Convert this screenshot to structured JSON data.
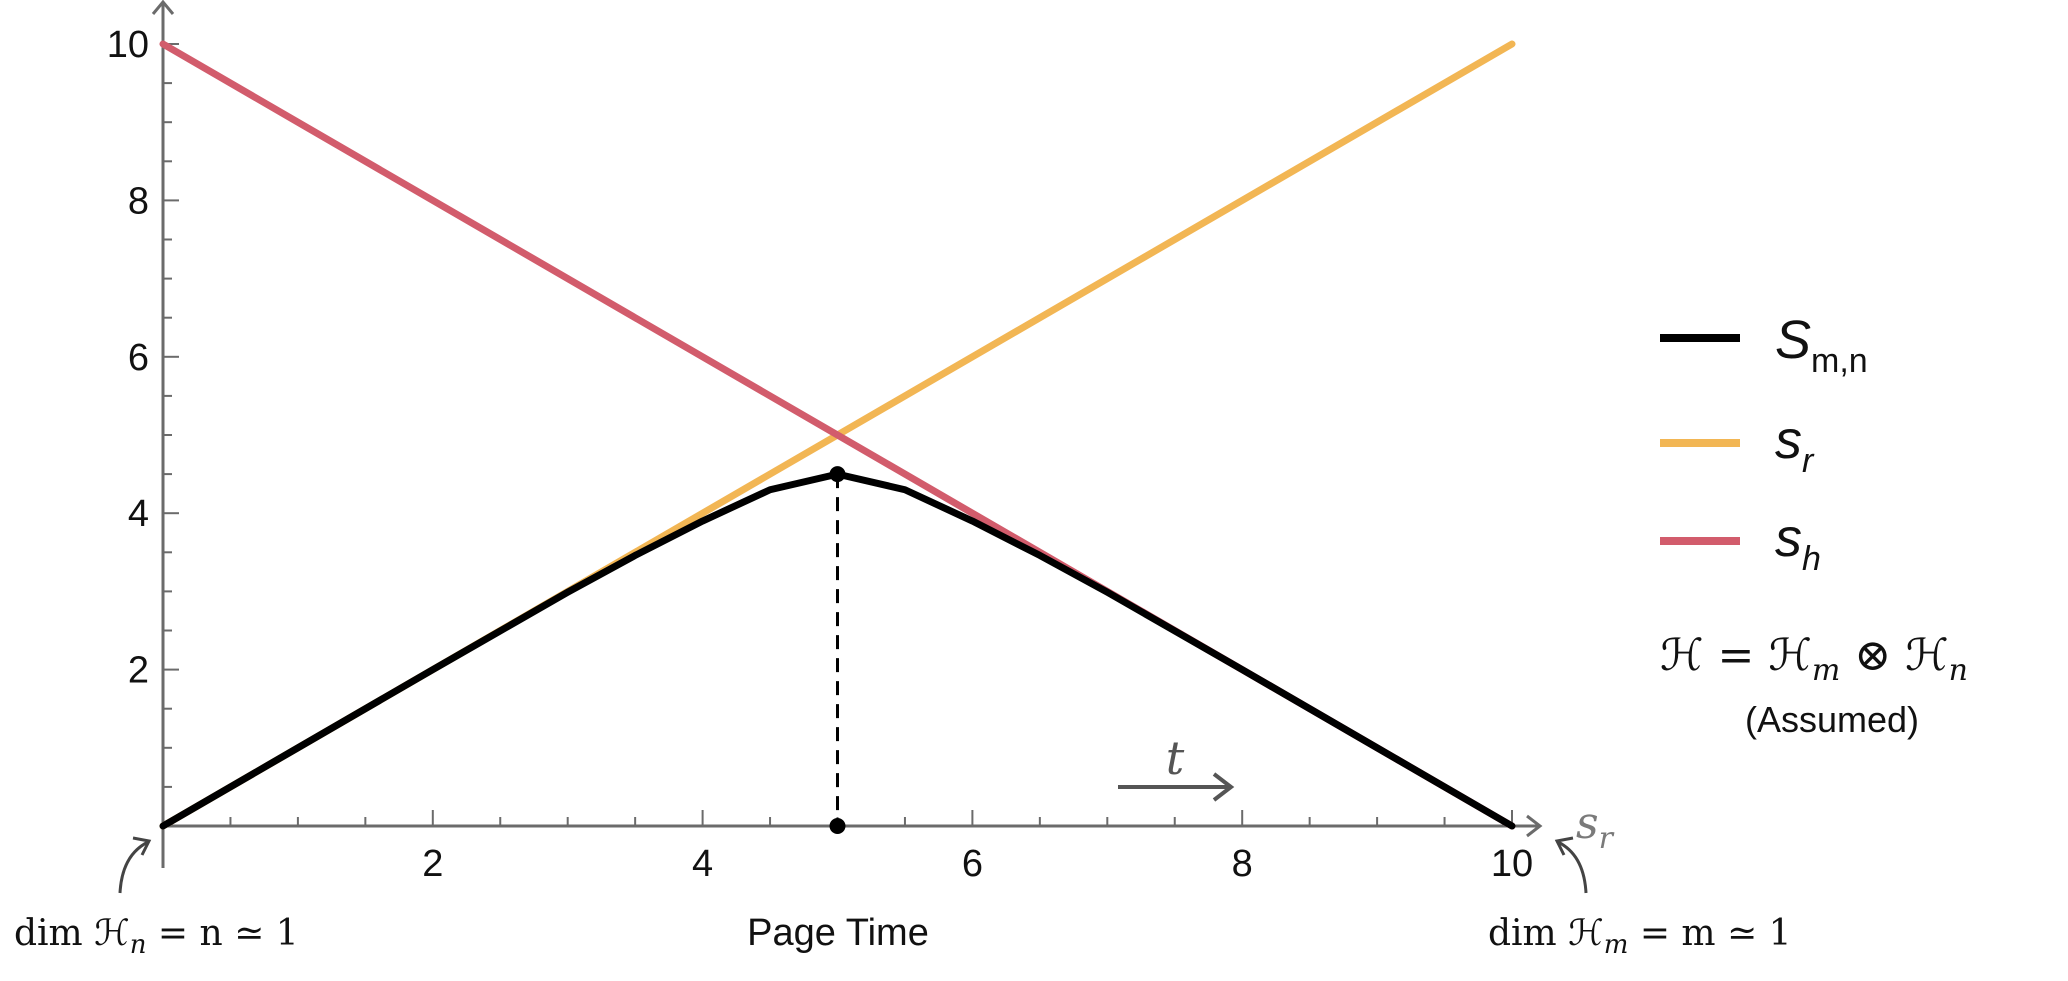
{
  "chart_data": {
    "type": "line",
    "xlabel": "Page Time",
    "xaxis_symbol": "s",
    "xaxis_symbol_sub": "r",
    "xlim": [
      0,
      10
    ],
    "ylim": [
      0,
      10
    ],
    "xticks": [
      2,
      4,
      6,
      8,
      10
    ],
    "yticks": [
      2,
      4,
      6,
      8,
      10
    ],
    "grid": false,
    "series": [
      {
        "name": "S",
        "name_sub": "m,n",
        "color": "#000000",
        "x": [
          0,
          1,
          2,
          3,
          3.5,
          4,
          4.5,
          5,
          5.5,
          6,
          6.5,
          7,
          8,
          9,
          10
        ],
        "y": [
          0,
          1,
          2,
          2.99,
          3.46,
          3.9,
          4.3,
          4.5,
          4.3,
          3.9,
          3.46,
          2.99,
          2,
          1,
          0
        ]
      },
      {
        "name": "s",
        "name_sub": "r",
        "color": "#F2B654",
        "x": [
          0,
          10
        ],
        "y": [
          0,
          10
        ]
      },
      {
        "name": "s",
        "name_sub": "h",
        "color": "#D25C6C",
        "x": [
          0,
          10
        ],
        "y": [
          10,
          0
        ]
      }
    ],
    "marked_point": {
      "x": 5,
      "y": 4.5
    },
    "annotations": {
      "time_arrow": "t",
      "left_note": "dim ℋ",
      "left_note_sub": "n",
      "left_note_rest": " = n ≃ 1",
      "right_note": "dim ℋ",
      "right_note_sub": "m",
      "right_note_rest": " = m ≃ 1",
      "hilbert_lhs": "ℋ = ℋ",
      "hilbert_sub_m": "m",
      "hilbert_mid": " ⊗ ℋ",
      "hilbert_sub_n": "n",
      "assumed": "(Assumed)"
    },
    "legend_placement": "right"
  }
}
